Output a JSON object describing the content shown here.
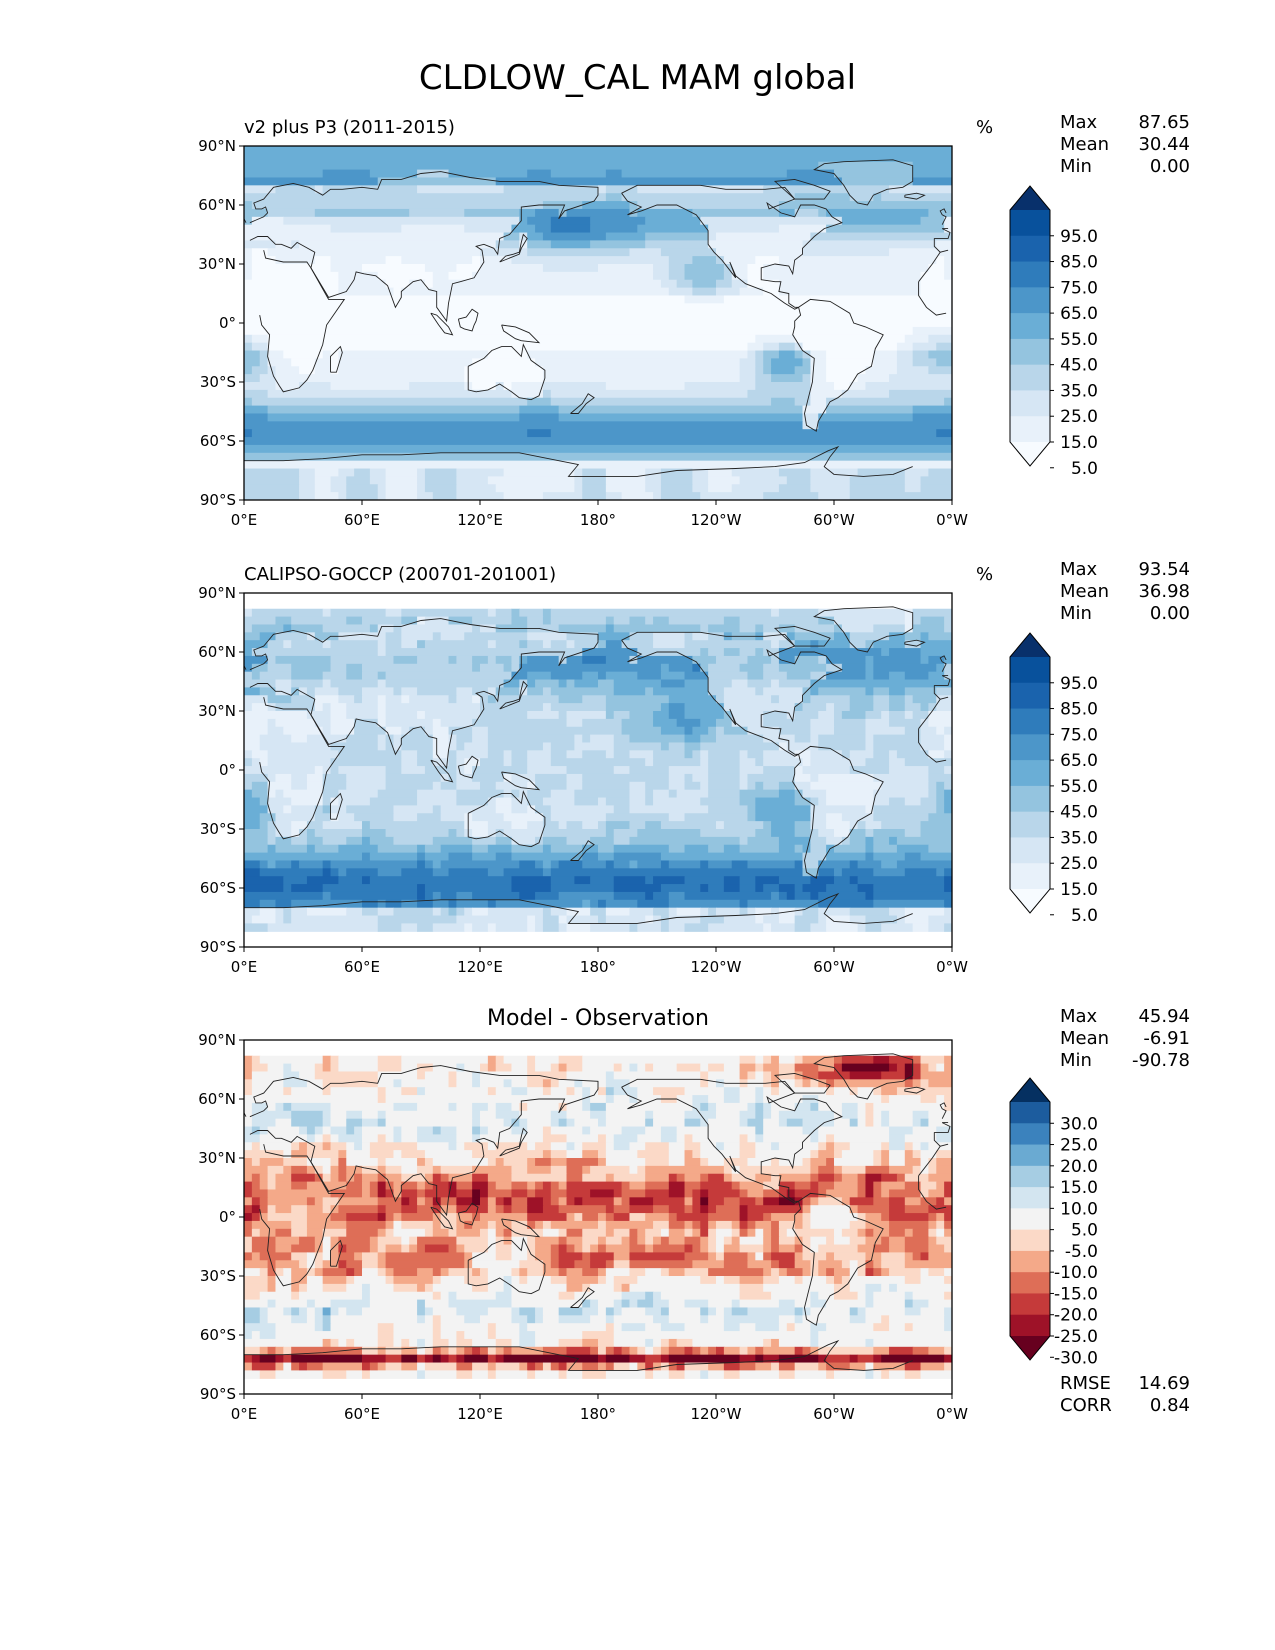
{
  "figure": {
    "title": "CLDLOW_CAL MAM global"
  },
  "panels": [
    {
      "id": "model",
      "title": "v2 plus P3 (2011-2015)",
      "title_align": "left",
      "units": "%",
      "stats": {
        "max_label": "Max",
        "max": "87.65",
        "mean_label": "Mean",
        "mean": "30.44",
        "min_label": "Min",
        "min": "0.00"
      },
      "colorbar": "sequential",
      "field": "model"
    },
    {
      "id": "obs",
      "title": "CALIPSO-GOCCP (200701-201001)",
      "title_align": "left",
      "units": "%",
      "stats": {
        "max_label": "Max",
        "max": "93.54",
        "mean_label": "Mean",
        "mean": "36.98",
        "min_label": "Min",
        "min": "0.00"
      },
      "colorbar": "sequential",
      "field": "obs"
    },
    {
      "id": "diff",
      "title": "Model - Observation",
      "title_align": "center",
      "units": "",
      "stats": {
        "max_label": "Max",
        "max": "45.94",
        "mean_label": "Mean",
        "mean": "-6.91",
        "min_label": "Min",
        "min": "-90.78"
      },
      "colorbar": "diverging",
      "field": "diff",
      "extra": {
        "rmse_label": "RMSE",
        "rmse": "14.69",
        "corr_label": "CORR",
        "corr": "0.84"
      }
    }
  ],
  "axes": {
    "y_ticks": [
      "90°N",
      "60°N",
      "30°N",
      "0°",
      "30°S",
      "60°S",
      "90°S"
    ],
    "x_ticks": [
      "0°E",
      "60°E",
      "120°E",
      "180°",
      "120°W",
      "60°W",
      "0°W"
    ]
  },
  "colorbars": {
    "sequential": {
      "labels": [
        "95.0",
        "85.0",
        "75.0",
        "65.0",
        "55.0",
        "45.0",
        "35.0",
        "25.0",
        "15.0",
        "5.0"
      ],
      "colors": [
        "#08306b",
        "#08519c",
        "#1a63ad",
        "#2f7cbb",
        "#4c96c9",
        "#6aaed6",
        "#94c4df",
        "#b9d6ea",
        "#d6e6f4",
        "#e8f1fa",
        "#f7fbff"
      ]
    },
    "diverging": {
      "labels": [
        "30.0",
        "25.0",
        "20.0",
        "15.0",
        "10.0",
        "5.0",
        "-5.0",
        "-10.0",
        "-15.0",
        "-20.0",
        "-25.0",
        "-30.0"
      ],
      "colors": [
        "#053061",
        "#1c5c9e",
        "#3b82bd",
        "#6aaad2",
        "#a6cde3",
        "#d3e5f0",
        "#f3f3f3",
        "#fbd9c7",
        "#f4a989",
        "#de6e57",
        "#c53a3a",
        "#9e1228",
        "#67001f"
      ]
    }
  },
  "chart_data": [
    {
      "type": "heatmap",
      "title": "v2 plus P3 (2011-2015)",
      "units": "%",
      "x_ticks": [
        "0°E",
        "60°E",
        "120°E",
        "180°",
        "120°W",
        "60°W",
        "0°W"
      ],
      "y_ticks": [
        "90°N",
        "60°N",
        "30°N",
        "0°",
        "30°S",
        "60°S",
        "90°S"
      ],
      "max": 87.65,
      "mean": 30.44,
      "min": 0.0,
      "color_levels": [
        5,
        15,
        25,
        35,
        45,
        55,
        65,
        75,
        85,
        95
      ]
    },
    {
      "type": "heatmap",
      "title": "CALIPSO-GOCCP (200701-201001)",
      "units": "%",
      "x_ticks": [
        "0°E",
        "60°E",
        "120°E",
        "180°",
        "120°W",
        "60°W",
        "0°W"
      ],
      "y_ticks": [
        "90°N",
        "60°N",
        "30°N",
        "0°",
        "30°S",
        "60°S",
        "90°S"
      ],
      "max": 93.54,
      "mean": 36.98,
      "min": 0.0,
      "color_levels": [
        5,
        15,
        25,
        35,
        45,
        55,
        65,
        75,
        85,
        95
      ]
    },
    {
      "type": "heatmap",
      "title": "Model - Observation",
      "x_ticks": [
        "0°E",
        "60°E",
        "120°E",
        "180°",
        "120°W",
        "60°W",
        "0°W"
      ],
      "y_ticks": [
        "90°N",
        "60°N",
        "30°N",
        "0°",
        "30°S",
        "60°S",
        "90°S"
      ],
      "max": 45.94,
      "mean": -6.91,
      "min": -90.78,
      "rmse": 14.69,
      "corr": 0.84,
      "color_levels": [
        -30,
        -25,
        -20,
        -15,
        -10,
        -5,
        5,
        10,
        15,
        20,
        25,
        30
      ]
    }
  ]
}
